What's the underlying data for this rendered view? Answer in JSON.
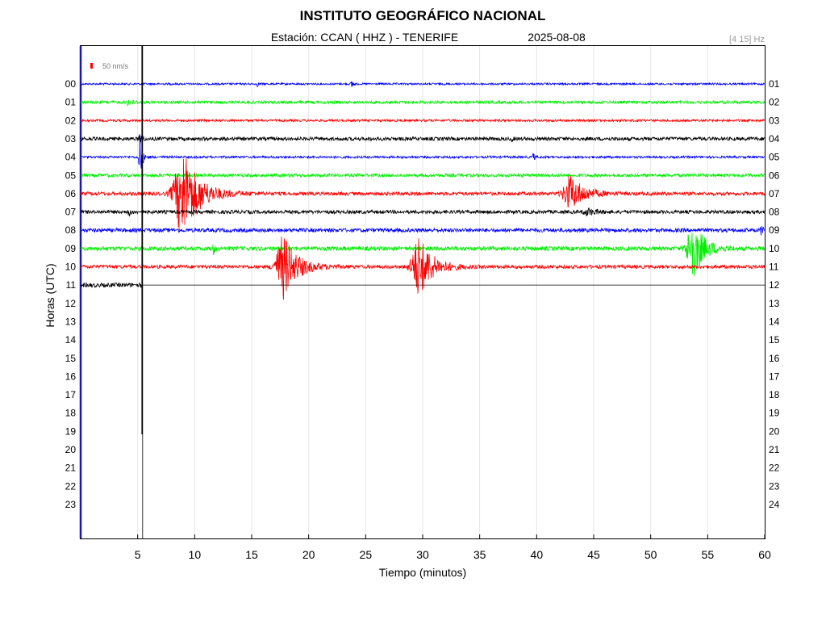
{
  "header": {
    "title": "INSTITUTO GEOGRÁFICO NACIONAL",
    "station": "Estación:  CCAN ( HHZ ) - TENERIFE",
    "date": "2025-08-08",
    "band": "[4 15] Hz"
  },
  "chart_data": {
    "type": "line",
    "subtype": "seismogram-helicorder",
    "xlabel": "Tiempo (minutos)",
    "ylabel": "Horas (UTC)",
    "xlim": [
      0,
      60
    ],
    "x_ticks": [
      5,
      10,
      15,
      20,
      25,
      30,
      35,
      40,
      45,
      50,
      55,
      60
    ],
    "grid": "vertical",
    "scale_label": "50 nm/s",
    "scale_color": "#ff0000",
    "left_hour_labels": [
      "00",
      "01",
      "02",
      "03",
      "04",
      "05",
      "06",
      "07",
      "08",
      "09",
      "10",
      "11",
      "12",
      "13",
      "14",
      "15",
      "16",
      "17",
      "18",
      "19",
      "20",
      "21",
      "22",
      "23"
    ],
    "right_hour_labels": [
      "01",
      "02",
      "03",
      "04",
      "05",
      "06",
      "07",
      "08",
      "09",
      "10",
      "11",
      "12",
      "13",
      "14",
      "15",
      "16",
      "17",
      "18",
      "19",
      "20",
      "21",
      "22",
      "23",
      "24"
    ],
    "color_cycle": [
      "#0000ff",
      "#00ee00",
      "#ff0000",
      "#000000"
    ],
    "current_time_minutes": 5.4,
    "traces": [
      {
        "hour": "00",
        "color": "#0000ff",
        "noise": 1.2,
        "end": 60,
        "events": [
          {
            "t": 23.8,
            "amp": 6,
            "dur": 0.3
          },
          {
            "t": 15.5,
            "amp": 3,
            "dur": 0.2
          }
        ]
      },
      {
        "hour": "01",
        "color": "#00ee00",
        "noise": 1.8,
        "end": 60,
        "events": [
          {
            "t": 4.2,
            "amp": 3,
            "dur": 1.0
          }
        ]
      },
      {
        "hour": "02",
        "color": "#ff0000",
        "noise": 1.4,
        "end": 60,
        "events": []
      },
      {
        "hour": "03",
        "color": "#000000",
        "noise": 2.2,
        "end": 60,
        "events": [
          {
            "t": 5.2,
            "amp": 10,
            "dur": 0.3
          },
          {
            "t": 37.8,
            "amp": 3,
            "dur": 0.2
          }
        ]
      },
      {
        "hour": "04",
        "color": "#0000ff",
        "noise": 1.4,
        "end": 60,
        "events": [
          {
            "t": 5.2,
            "amp": 30,
            "dur": 0.4
          },
          {
            "t": 39.7,
            "amp": 5,
            "dur": 0.3
          }
        ]
      },
      {
        "hour": "05",
        "color": "#00ee00",
        "noise": 2.0,
        "end": 60,
        "events": []
      },
      {
        "hour": "06",
        "color": "#ff0000",
        "noise": 2.2,
        "end": 60,
        "events": [
          {
            "t": 9.0,
            "amp": 55,
            "dur": 3.0
          },
          {
            "t": 43.0,
            "amp": 22,
            "dur": 2.5
          }
        ]
      },
      {
        "hour": "07",
        "color": "#000000",
        "noise": 2.2,
        "end": 60,
        "events": [
          {
            "t": 4.2,
            "amp": 6,
            "dur": 0.3
          },
          {
            "t": 44.5,
            "amp": 4,
            "dur": 1.5
          }
        ]
      },
      {
        "hour": "08",
        "color": "#0000ff",
        "noise": 2.4,
        "end": 60,
        "events": [
          {
            "t": 59.7,
            "amp": 6,
            "dur": 0.3
          }
        ]
      },
      {
        "hour": "09",
        "color": "#00ee00",
        "noise": 2.6,
        "end": 60,
        "events": [
          {
            "t": 11.6,
            "amp": 8,
            "dur": 0.3
          },
          {
            "t": 53.7,
            "amp": 38,
            "dur": 2.0
          }
        ]
      },
      {
        "hour": "10",
        "color": "#ff0000",
        "noise": 2.2,
        "end": 60,
        "events": [
          {
            "t": 17.8,
            "amp": 40,
            "dur": 2.5
          },
          {
            "t": 29.7,
            "amp": 38,
            "dur": 2.5
          }
        ]
      },
      {
        "hour": "11",
        "color": "#000000",
        "noise": 2.6,
        "end": 5.4,
        "events": []
      }
    ]
  }
}
